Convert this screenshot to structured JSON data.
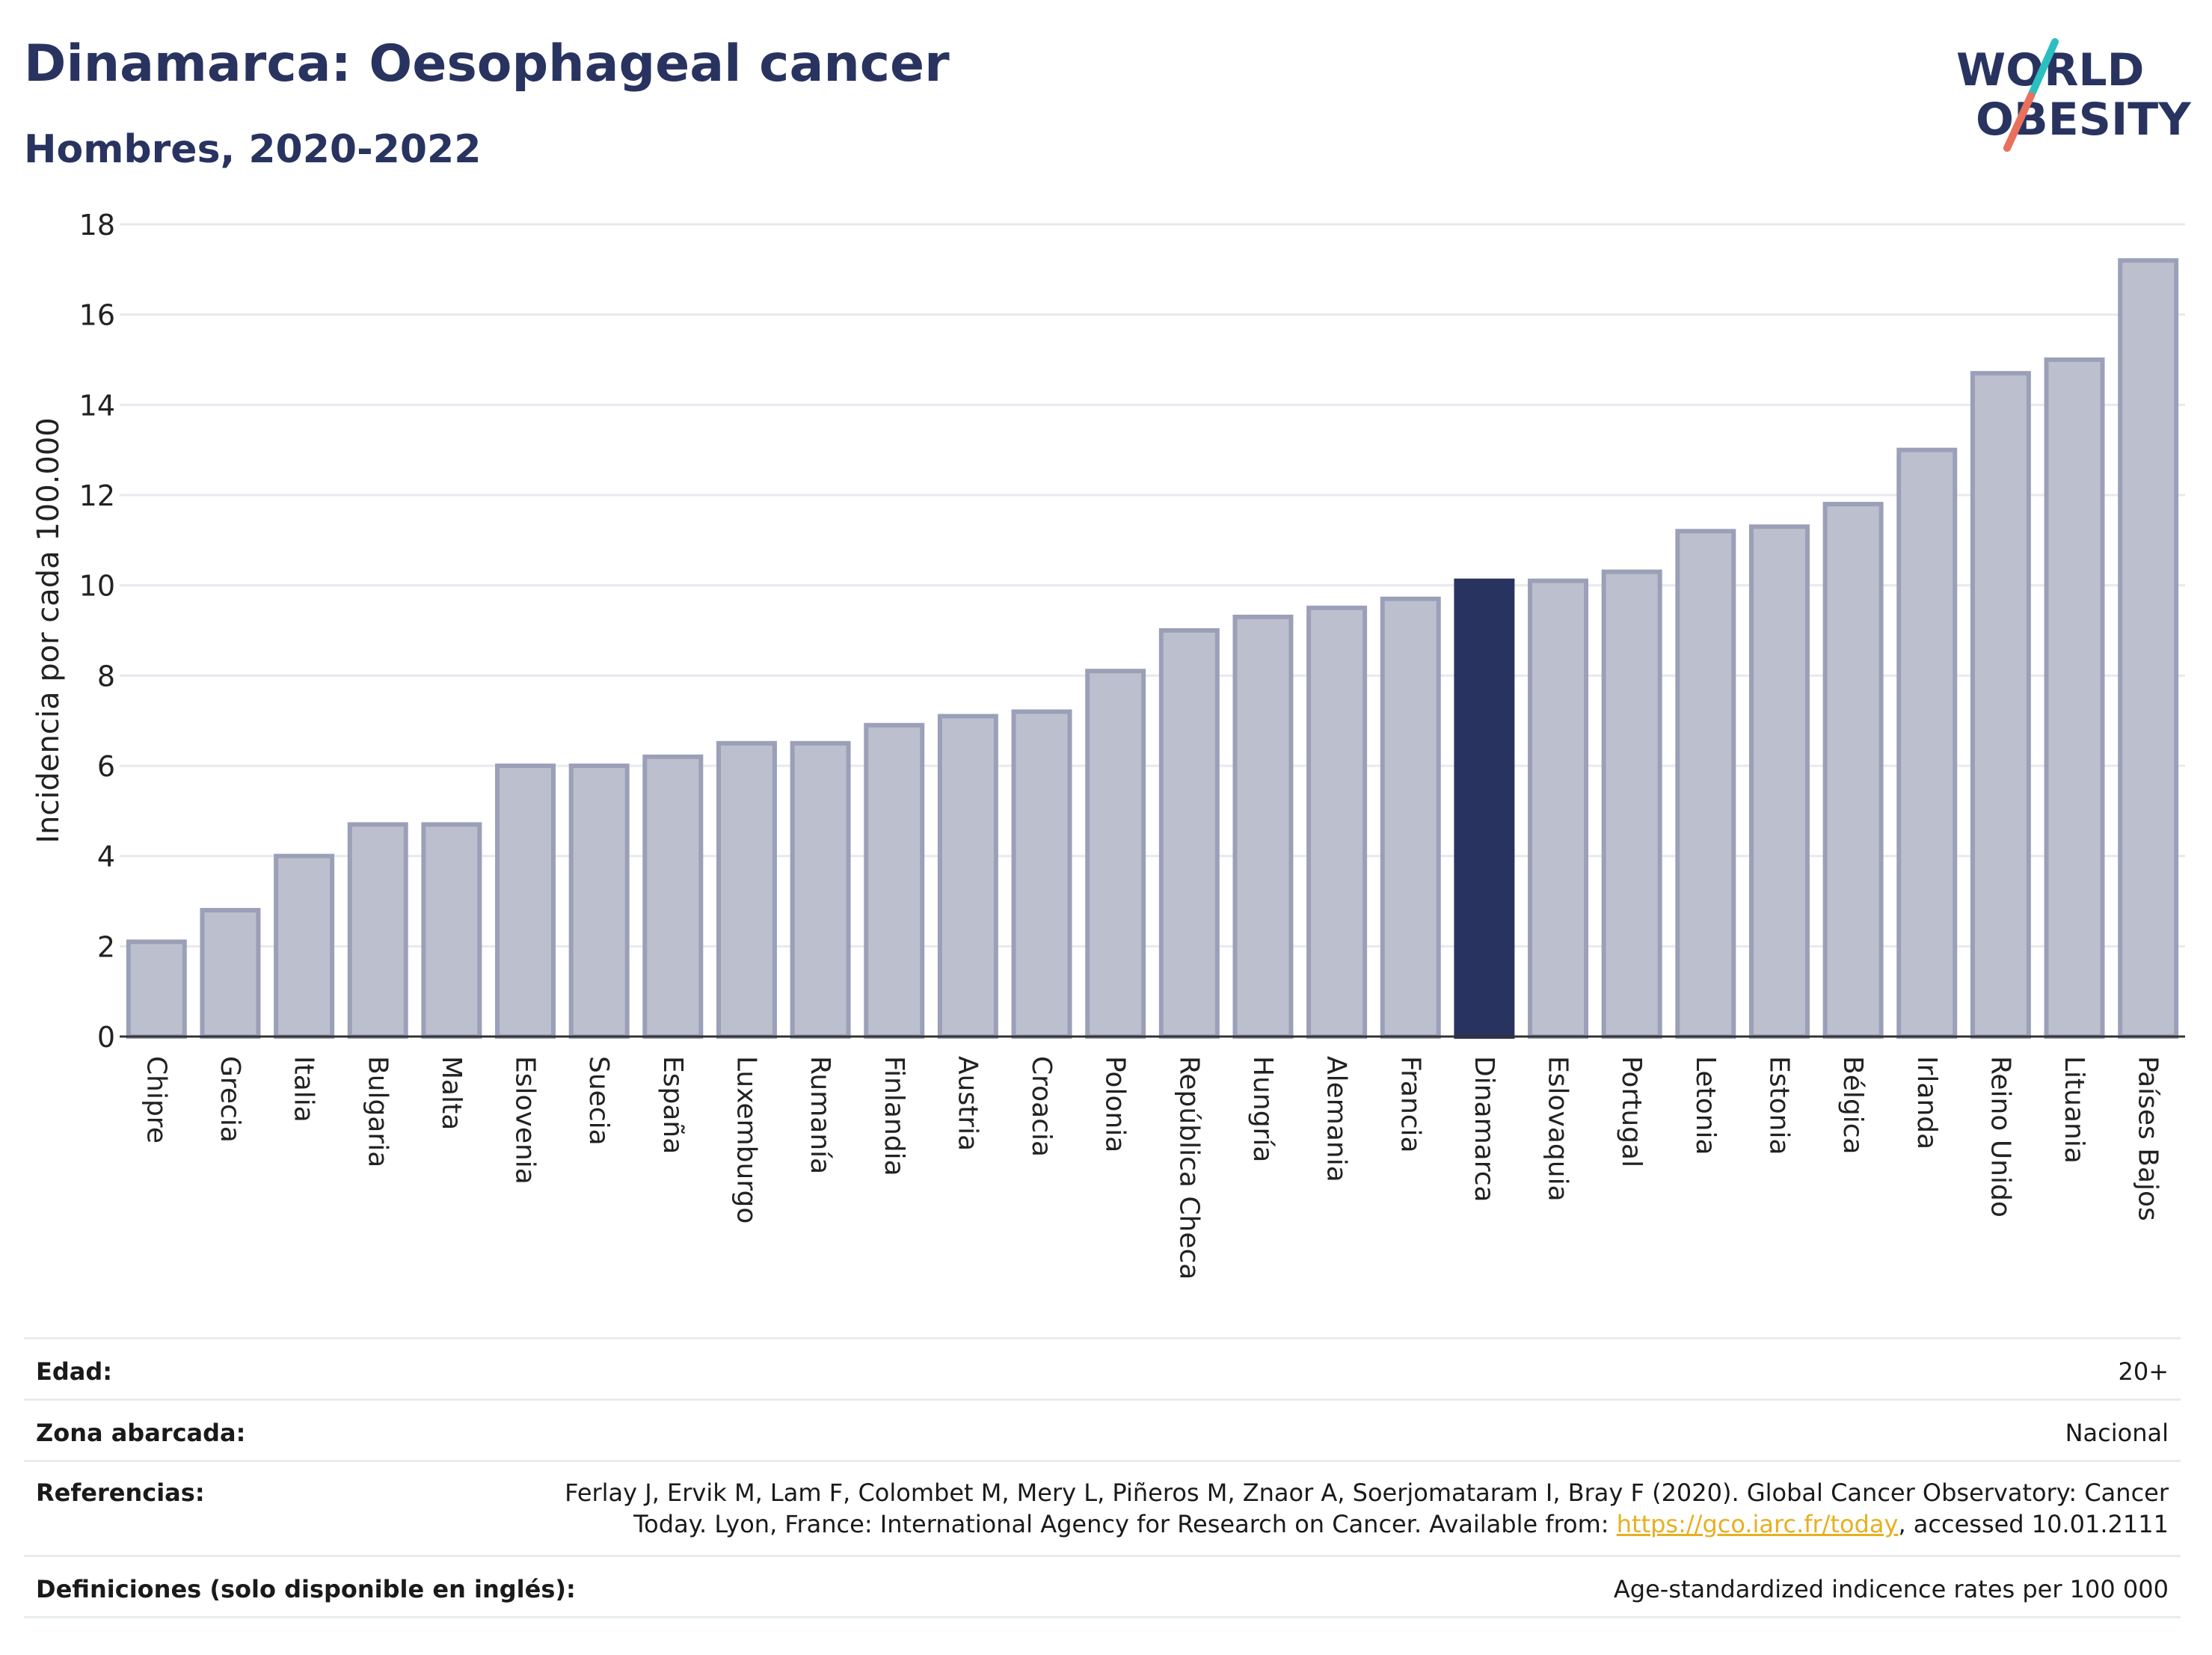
{
  "header": {
    "title": "Dinamarca: Oesophageal cancer",
    "subtitle": "Hombres, 2020-2022"
  },
  "logo": {
    "line1": "WORLD",
    "line2": "OBESITY",
    "colors": {
      "text": "#283360",
      "slash_top": "#2bbfc0",
      "slash_bottom": "#e8705c"
    }
  },
  "chart_data": {
    "type": "bar",
    "ylabel": "Incidencia por cada 100.000",
    "ylim": [
      0,
      18
    ],
    "yticks": [
      0,
      2,
      4,
      6,
      8,
      10,
      12,
      14,
      16,
      18
    ],
    "grid": true,
    "highlight": "Dinamarca",
    "colors": {
      "bar": "#bcc0ce",
      "bar_edge": "#9ba0b8",
      "highlight": "#283360",
      "grid": "#e6e9ee"
    },
    "categories": [
      "Chipre",
      "Grecia",
      "Italia",
      "Bulgaria",
      "Malta",
      "Eslovenia",
      "Suecia",
      "España",
      "Luxemburgo",
      "Rumanía",
      "Finlandia",
      "Austria",
      "Croacia",
      "Polonia",
      "República Checa",
      "Hungría",
      "Alemania",
      "Francia",
      "Dinamarca",
      "Eslovaquia",
      "Portugal",
      "Letonia",
      "Estonia",
      "Bélgica",
      "Irlanda",
      "Reino Unido",
      "Lituania",
      "Países Bajos"
    ],
    "values": [
      2.1,
      2.8,
      4.0,
      4.7,
      4.7,
      6.0,
      6.0,
      6.2,
      6.5,
      6.5,
      6.9,
      7.1,
      7.2,
      8.1,
      9.0,
      9.3,
      9.5,
      9.7,
      10.1,
      10.1,
      10.3,
      11.2,
      11.3,
      11.8,
      13.0,
      14.7,
      15.0,
      17.2
    ]
  },
  "meta": {
    "age_label": "Edad:",
    "age_value": "20+",
    "zone_label": "Zona abarcada:",
    "zone_value": "Nacional",
    "ref_label": "Referencias:",
    "ref_line1": "Ferlay J, Ervik M, Lam F, Colombet M, Mery L, Piñeros M, Znaor A, Soerjomataram I, Bray F (2020). Global Cancer Observatory: Cancer",
    "ref_line2_pre": "Today. Lyon, France: International Agency for Research on Cancer. Available from: ",
    "ref_link": "https://gco.iarc.fr/today",
    "ref_line2_post": ", accessed 10.01.2111",
    "def_label": "Definiciones (solo disponible en inglés):",
    "def_value": "Age-standardized indicence rates per 100 000"
  }
}
